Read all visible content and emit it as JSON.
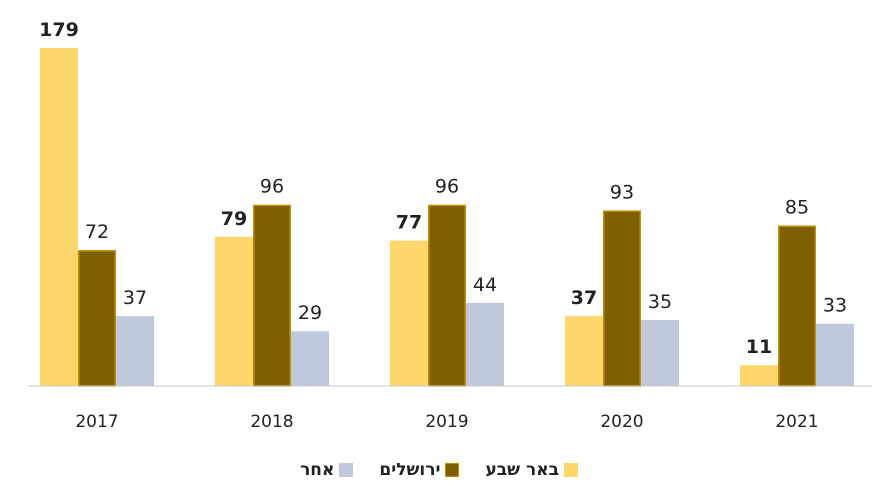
{
  "chart_data": {
    "type": "bar",
    "categories": [
      "2017",
      "2018",
      "2019",
      "2020",
      "2021"
    ],
    "series": [
      {
        "name": "באר שבע",
        "values": [
          179,
          79,
          77,
          37,
          11
        ],
        "color": "#FDD76B",
        "bold_labels": true
      },
      {
        "name": "ירושלים",
        "values": [
          72,
          96,
          96,
          93,
          85
        ],
        "color": "#7F6000",
        "border": "#C09000",
        "bold_labels": false
      },
      {
        "name": "אחר",
        "values": [
          37,
          29,
          44,
          35,
          33
        ],
        "color": "#BFC9DB",
        "bold_labels": false
      }
    ],
    "ylim": [
      0,
      179
    ],
    "legend_position": "bottom",
    "grid": false
  }
}
